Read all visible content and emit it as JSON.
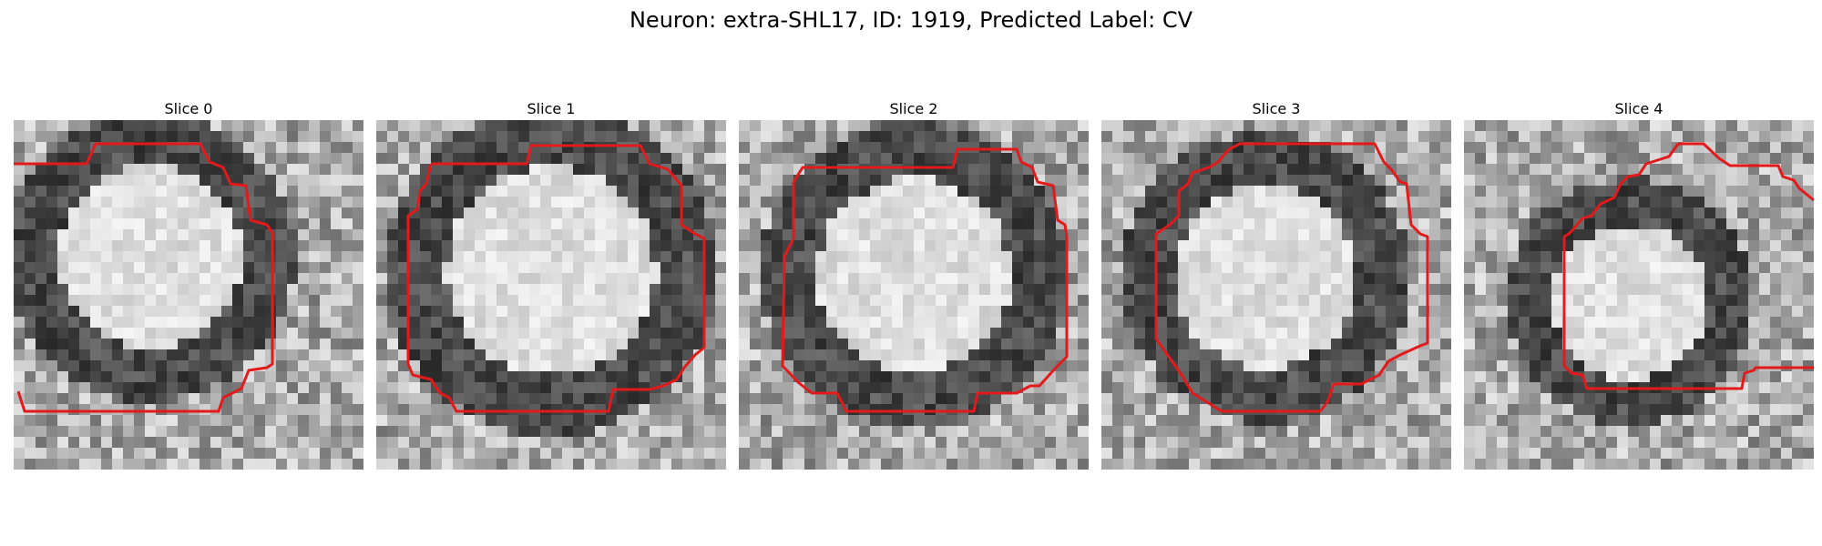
{
  "figure": {
    "title": "Neuron: extra-SHL17, ID: 1919, Predicted Label: CV"
  },
  "panels": [
    {
      "title": "Slice 0"
    },
    {
      "title": "Slice 1"
    },
    {
      "title": "Slice 2"
    },
    {
      "title": "Slice 3"
    },
    {
      "title": "Slice 4"
    }
  ],
  "colors": {
    "contour": "#e31a1c",
    "background": "#ffffff"
  }
}
